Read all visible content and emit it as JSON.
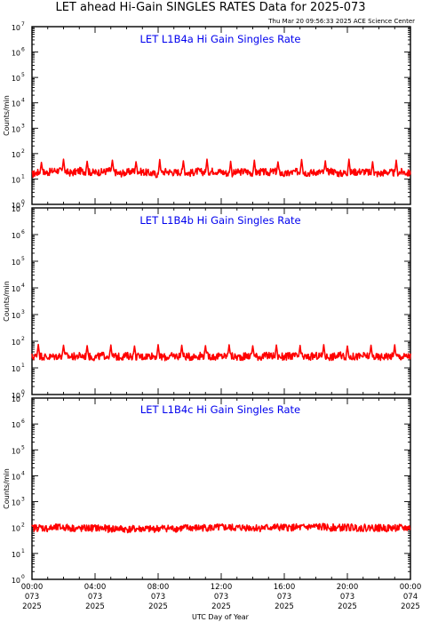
{
  "title": "LET ahead Hi-Gain SINGLES RATES Data for 2025-073",
  "timestamp": "Thu Mar 20 09:56:33 2025 ACE Science Center",
  "colors": {
    "series": "#ff0000",
    "panel_title": "#0000ee",
    "axes": "#000000",
    "background": "#ffffff"
  },
  "chart_data": [
    {
      "type": "line",
      "title": "LET L1B4a Hi Gain Singles Rate",
      "ylabel": "Counts/min",
      "xlabel": "",
      "yscale": "log",
      "ylim": [
        1,
        10000000
      ],
      "xlim": [
        0,
        24
      ],
      "x_unit": "hours UTC, day 073",
      "yticks": [
        {
          "base": "10",
          "exp": "0"
        },
        {
          "base": "10",
          "exp": "1"
        },
        {
          "base": "10",
          "exp": "2"
        },
        {
          "base": "10",
          "exp": "3"
        },
        {
          "base": "10",
          "exp": "4"
        },
        {
          "base": "10",
          "exp": "5"
        },
        {
          "base": "10",
          "exp": "6"
        },
        {
          "base": "10",
          "exp": "7"
        }
      ],
      "series": [
        {
          "values": [
            [
              0,
              15
            ],
            [
              0.5,
              19
            ],
            [
              1,
              18
            ],
            [
              1.5,
              22
            ],
            [
              2,
              20
            ],
            [
              2.5,
              17
            ],
            [
              3,
              21
            ],
            [
              3.5,
              19
            ],
            [
              4,
              18
            ],
            [
              4.5,
              19
            ],
            [
              5,
              22
            ],
            [
              5.5,
              16
            ],
            [
              6,
              18
            ],
            [
              6.5,
              21
            ],
            [
              7,
              19
            ],
            [
              7.5,
              17
            ],
            [
              8,
              15
            ],
            [
              8.5,
              20
            ],
            [
              9,
              18
            ],
            [
              9.5,
              19
            ],
            [
              10,
              17
            ],
            [
              10.5,
              20
            ],
            [
              11,
              18
            ],
            [
              11.5,
              21
            ],
            [
              12,
              19
            ],
            [
              12.5,
              16
            ],
            [
              13,
              18
            ],
            [
              13.5,
              20
            ],
            [
              14,
              17
            ],
            [
              14.5,
              19
            ],
            [
              15,
              18
            ],
            [
              15.5,
              20
            ],
            [
              16,
              15
            ],
            [
              16.5,
              18
            ],
            [
              17,
              20
            ],
            [
              17.5,
              17
            ],
            [
              18,
              19
            ],
            [
              18.5,
              18
            ],
            [
              19,
              21
            ],
            [
              19.5,
              16
            ],
            [
              20,
              18
            ],
            [
              20.5,
              19
            ],
            [
              21,
              20
            ],
            [
              21.5,
              17
            ],
            [
              22,
              16
            ],
            [
              22.5,
              19
            ],
            [
              23,
              17
            ],
            [
              23.5,
              19
            ],
            [
              24,
              16
            ]
          ],
          "spikes": [
            [
              0.6,
              45
            ],
            [
              2.0,
              60
            ],
            [
              3.5,
              50
            ],
            [
              5.1,
              55
            ],
            [
              6.6,
              48
            ],
            [
              8.1,
              58
            ],
            [
              9.6,
              52
            ],
            [
              11.1,
              60
            ],
            [
              12.6,
              50
            ],
            [
              14.1,
              55
            ],
            [
              15.6,
              47
            ],
            [
              17.1,
              58
            ],
            [
              18.6,
              52
            ],
            [
              20.1,
              60
            ],
            [
              21.6,
              48
            ],
            [
              23.1,
              55
            ]
          ]
        }
      ]
    },
    {
      "type": "line",
      "title": "LET L1B4b Hi Gain Singles Rate",
      "ylabel": "Counts/min",
      "xlabel": "",
      "yscale": "log",
      "ylim": [
        1,
        10000000
      ],
      "xlim": [
        0,
        24
      ],
      "x_unit": "hours UTC, day 073",
      "yticks": [
        {
          "base": "10",
          "exp": "0"
        },
        {
          "base": "10",
          "exp": "1"
        },
        {
          "base": "10",
          "exp": "2"
        },
        {
          "base": "10",
          "exp": "3"
        },
        {
          "base": "10",
          "exp": "4"
        },
        {
          "base": "10",
          "exp": "5"
        },
        {
          "base": "10",
          "exp": "6"
        },
        {
          "base": "10",
          "exp": "7"
        }
      ],
      "series": [
        {
          "values": [
            [
              0,
              26
            ],
            [
              0.5,
              28
            ],
            [
              1,
              25
            ],
            [
              1.5,
              27
            ],
            [
              2,
              29
            ],
            [
              2.5,
              26
            ],
            [
              3,
              28
            ],
            [
              3.5,
              27
            ],
            [
              4,
              25
            ],
            [
              4.5,
              29
            ],
            [
              5,
              27
            ],
            [
              5.5,
              26
            ],
            [
              6,
              28
            ],
            [
              6.5,
              27
            ],
            [
              7,
              26
            ],
            [
              7.5,
              29
            ],
            [
              8,
              27
            ],
            [
              8.5,
              25
            ],
            [
              9,
              28
            ],
            [
              9.5,
              27
            ],
            [
              10,
              26
            ],
            [
              10.5,
              28
            ],
            [
              11,
              29
            ],
            [
              11.5,
              26
            ],
            [
              12,
              27
            ],
            [
              12.5,
              28
            ],
            [
              13,
              25
            ],
            [
              13.5,
              27
            ],
            [
              14,
              28
            ],
            [
              14.5,
              26
            ],
            [
              15,
              29
            ],
            [
              15.5,
              27
            ],
            [
              16,
              26
            ],
            [
              16.5,
              28
            ],
            [
              17,
              27
            ],
            [
              17.5,
              25
            ],
            [
              18,
              28
            ],
            [
              18.5,
              27
            ],
            [
              19,
              26
            ],
            [
              19.5,
              29
            ],
            [
              20,
              27
            ],
            [
              20.5,
              26
            ],
            [
              21,
              28
            ],
            [
              21.5,
              27
            ],
            [
              22,
              25
            ],
            [
              22.5,
              28
            ],
            [
              23,
              27
            ],
            [
              23.5,
              26
            ],
            [
              24,
              28
            ]
          ],
          "spikes": [
            [
              0.4,
              75
            ],
            [
              2.0,
              70
            ],
            [
              3.5,
              68
            ],
            [
              5.0,
              72
            ],
            [
              6.5,
              66
            ],
            [
              8.0,
              74
            ],
            [
              9.5,
              70
            ],
            [
              11.0,
              68
            ],
            [
              12.5,
              73
            ],
            [
              14.0,
              67
            ],
            [
              15.5,
              72
            ],
            [
              17.0,
              69
            ],
            [
              18.5,
              74
            ],
            [
              20.0,
              66
            ],
            [
              21.5,
              71
            ],
            [
              23.0,
              73
            ]
          ]
        }
      ]
    },
    {
      "type": "line",
      "title": "LET L1B4c Hi Gain Singles Rate",
      "ylabel": "Counts/min",
      "xlabel": "UTC Day of Year",
      "yscale": "log",
      "ylim": [
        1,
        10000000
      ],
      "xlim": [
        0,
        24
      ],
      "x_unit": "hours UTC, day 073",
      "yticks": [
        {
          "base": "10",
          "exp": "0"
        },
        {
          "base": "10",
          "exp": "1"
        },
        {
          "base": "10",
          "exp": "2"
        },
        {
          "base": "10",
          "exp": "3"
        },
        {
          "base": "10",
          "exp": "4"
        },
        {
          "base": "10",
          "exp": "5"
        },
        {
          "base": "10",
          "exp": "6"
        },
        {
          "base": "10",
          "exp": "7"
        }
      ],
      "xticks": [
        {
          "x": 0,
          "time": "00:00",
          "day": "073",
          "year": "2025"
        },
        {
          "x": 4,
          "time": "04:00",
          "day": "073",
          "year": "2025"
        },
        {
          "x": 8,
          "time": "08:00",
          "day": "073",
          "year": "2025"
        },
        {
          "x": 12,
          "time": "12:00",
          "day": "073",
          "year": "2025"
        },
        {
          "x": 16,
          "time": "16:00",
          "day": "073",
          "year": "2025"
        },
        {
          "x": 20,
          "time": "20:00",
          "day": "073",
          "year": "2025"
        },
        {
          "x": 24,
          "time": "00:00",
          "day": "074",
          "year": "2025"
        }
      ],
      "series": [
        {
          "values": [
            [
              0,
              95
            ],
            [
              0.5,
              100
            ],
            [
              1,
              92
            ],
            [
              1.5,
              98
            ],
            [
              2,
              102
            ],
            [
              2.5,
              96
            ],
            [
              3,
              90
            ],
            [
              3.5,
              94
            ],
            [
              4,
              97
            ],
            [
              4.5,
              93
            ],
            [
              5,
              88
            ],
            [
              5.5,
              92
            ],
            [
              6,
              85
            ],
            [
              6.5,
              88
            ],
            [
              7,
              90
            ],
            [
              7.5,
              86
            ],
            [
              8,
              92
            ],
            [
              8.5,
              95
            ],
            [
              9,
              90
            ],
            [
              9.5,
              94
            ],
            [
              10,
              98
            ],
            [
              10.5,
              95
            ],
            [
              11,
              100
            ],
            [
              11.5,
              96
            ],
            [
              12,
              102
            ],
            [
              12.5,
              99
            ],
            [
              13,
              97
            ],
            [
              13.5,
              101
            ],
            [
              14,
              98
            ],
            [
              14.5,
              96
            ],
            [
              15,
              100
            ],
            [
              15.5,
              103
            ],
            [
              16,
              98
            ],
            [
              16.5,
              101
            ],
            [
              17,
              99
            ],
            [
              17.5,
              104
            ],
            [
              18,
              108
            ],
            [
              18.5,
              104
            ],
            [
              19,
              100
            ],
            [
              19.5,
              98
            ],
            [
              20,
              102
            ],
            [
              20.5,
              99
            ],
            [
              21,
              97
            ],
            [
              21.5,
              100
            ],
            [
              22,
              96
            ],
            [
              22.5,
              94
            ],
            [
              23,
              98
            ],
            [
              23.5,
              95
            ],
            [
              24,
              97
            ]
          ],
          "spikes": []
        }
      ]
    }
  ]
}
